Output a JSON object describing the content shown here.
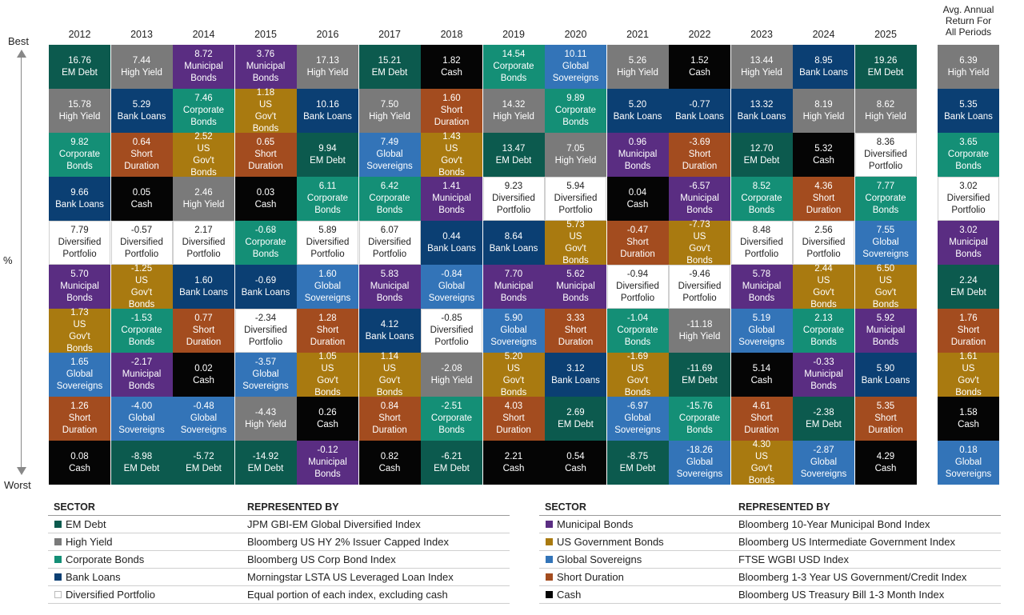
{
  "chart_data": {
    "type": "table",
    "years": [
      "2012",
      "2013",
      "2014",
      "2015",
      "2016",
      "2017",
      "2018",
      "2019",
      "2020",
      "2021",
      "2022",
      "2023",
      "2024",
      "2025"
    ],
    "avg_header": [
      "Avg. Annual",
      "Return For",
      "All Periods"
    ],
    "label_best": "Best",
    "label_worst": "Worst",
    "label_pct": "%",
    "colors": {
      "emd": "#0c5a4e",
      "hy": "#7a7a7a",
      "corp": "#148f76",
      "loans": "#0b3f73",
      "div": "#ffffff",
      "muni": "#5a2d82",
      "ust": "#a97a10",
      "glob": "#3374b8",
      "short": "#a34c1f",
      "cash": "#050505"
    },
    "columns": [
      [
        [
          "16.76",
          "EM Debt",
          "emd"
        ],
        [
          "15.78",
          "High Yield",
          "hy"
        ],
        [
          "9.82",
          "Corporate Bonds",
          "corp"
        ],
        [
          "9.66",
          "Bank Loans",
          "loans"
        ],
        [
          "7.79",
          "Diversified Portfolio",
          "div"
        ],
        [
          "5.70",
          "Municipal Bonds",
          "muni"
        ],
        [
          "1.73",
          "US Gov't Bonds",
          "ust"
        ],
        [
          "1.65",
          "Global Sovereigns",
          "glob"
        ],
        [
          "1.26",
          "Short Duration",
          "short"
        ],
        [
          "0.08",
          "Cash",
          "cash"
        ]
      ],
      [
        [
          "7.44",
          "High Yield",
          "hy"
        ],
        [
          "5.29",
          "Bank Loans",
          "loans"
        ],
        [
          "0.64",
          "Short Duration",
          "short"
        ],
        [
          "0.05",
          "Cash",
          "cash"
        ],
        [
          "-0.57",
          "Diversified Portfolio",
          "div"
        ],
        [
          "-1.25",
          "US Gov't Bonds",
          "ust"
        ],
        [
          "-1.53",
          "Corporate Bonds",
          "corp"
        ],
        [
          "-2.17",
          "Municipal Bonds",
          "muni"
        ],
        [
          "-4.00",
          "Global Sovereigns",
          "glob"
        ],
        [
          "-8.98",
          "EM Debt",
          "emd"
        ]
      ],
      [
        [
          "8.72",
          "Municipal Bonds",
          "muni"
        ],
        [
          "7.46",
          "Corporate Bonds",
          "corp"
        ],
        [
          "2.52",
          "US Gov't Bonds",
          "ust"
        ],
        [
          "2.46",
          "High Yield",
          "hy"
        ],
        [
          "2.17",
          "Diversified Portfolio",
          "div"
        ],
        [
          "1.60",
          "Bank Loans",
          "loans"
        ],
        [
          "0.77",
          "Short Duration",
          "short"
        ],
        [
          "0.02",
          "Cash",
          "cash"
        ],
        [
          "-0.48",
          "Global Sovereigns",
          "glob"
        ],
        [
          "-5.72",
          "EM Debt",
          "emd"
        ]
      ],
      [
        [
          "3.76",
          "Municipal Bonds",
          "muni"
        ],
        [
          "1.18",
          "US Gov't Bonds",
          "ust"
        ],
        [
          "0.65",
          "Short Duration",
          "short"
        ],
        [
          "0.03",
          "Cash",
          "cash"
        ],
        [
          "-0.68",
          "Corporate Bonds",
          "corp"
        ],
        [
          "-0.69",
          "Bank Loans",
          "loans"
        ],
        [
          "-2.34",
          "Diversified Portfolio",
          "div"
        ],
        [
          "-3.57",
          "Global Sovereigns",
          "glob"
        ],
        [
          "-4.43",
          "High Yield",
          "hy"
        ],
        [
          "-14.92",
          "EM Debt",
          "emd"
        ]
      ],
      [
        [
          "17.13",
          "High Yield",
          "hy"
        ],
        [
          "10.16",
          "Bank Loans",
          "loans"
        ],
        [
          "9.94",
          "EM Debt",
          "emd"
        ],
        [
          "6.11",
          "Corporate Bonds",
          "corp"
        ],
        [
          "5.89",
          "Diversified Portfolio",
          "div"
        ],
        [
          "1.60",
          "Global Sovereigns",
          "glob"
        ],
        [
          "1.28",
          "Short Duration",
          "short"
        ],
        [
          "1.05",
          "US Gov't Bonds",
          "ust"
        ],
        [
          "0.26",
          "Cash",
          "cash"
        ],
        [
          "-0.12",
          "Municipal Bonds",
          "muni"
        ]
      ],
      [
        [
          "15.21",
          "EM Debt",
          "emd"
        ],
        [
          "7.50",
          "High Yield",
          "hy"
        ],
        [
          "7.49",
          "Global Sovereigns",
          "glob"
        ],
        [
          "6.42",
          "Corporate Bonds",
          "corp"
        ],
        [
          "6.07",
          "Diversified Portfolio",
          "div"
        ],
        [
          "5.83",
          "Municipal Bonds",
          "muni"
        ],
        [
          "4.12",
          "Bank Loans",
          "loans"
        ],
        [
          "1.14",
          "US Gov't Bonds",
          "ust"
        ],
        [
          "0.84",
          "Short Duration",
          "short"
        ],
        [
          "0.82",
          "Cash",
          "cash"
        ]
      ],
      [
        [
          "1.82",
          "Cash",
          "cash"
        ],
        [
          "1.60",
          "Short Duration",
          "short"
        ],
        [
          "1.43",
          "US Gov't Bonds",
          "ust"
        ],
        [
          "1.41",
          "Municipal Bonds",
          "muni"
        ],
        [
          "0.44",
          "Bank Loans",
          "loans"
        ],
        [
          "-0.84",
          "Global Sovereigns",
          "glob"
        ],
        [
          "-0.85",
          "Diversified Portfolio",
          "div"
        ],
        [
          "-2.08",
          "High Yield",
          "hy"
        ],
        [
          "-2.51",
          "Corporate Bonds",
          "corp"
        ],
        [
          "-6.21",
          "EM Debt",
          "emd"
        ]
      ],
      [
        [
          "14.54",
          "Corporate Bonds",
          "corp"
        ],
        [
          "14.32",
          "High Yield",
          "hy"
        ],
        [
          "13.47",
          "EM Debt",
          "emd"
        ],
        [
          "9.23",
          "Diversified Portfolio",
          "div"
        ],
        [
          "8.64",
          "Bank Loans",
          "loans"
        ],
        [
          "7.70",
          "Municipal Bonds",
          "muni"
        ],
        [
          "5.90",
          "Global Sovereigns",
          "glob"
        ],
        [
          "5.20",
          "US Gov't Bonds",
          "ust"
        ],
        [
          "4.03",
          "Short Duration",
          "short"
        ],
        [
          "2.21",
          "Cash",
          "cash"
        ]
      ],
      [
        [
          "10.11",
          "Global Sovereigns",
          "glob"
        ],
        [
          "9.89",
          "Corporate Bonds",
          "corp"
        ],
        [
          "7.05",
          "High Yield",
          "hy"
        ],
        [
          "5.94",
          "Diversified Portfolio",
          "div"
        ],
        [
          "5.73",
          "US Gov't Bonds",
          "ust"
        ],
        [
          "5.62",
          "Municipal Bonds",
          "muni"
        ],
        [
          "3.33",
          "Short Duration",
          "short"
        ],
        [
          "3.12",
          "Bank Loans",
          "loans"
        ],
        [
          "2.69",
          "EM Debt",
          "emd"
        ],
        [
          "0.54",
          "Cash",
          "cash"
        ]
      ],
      [
        [
          "5.26",
          "High Yield",
          "hy"
        ],
        [
          "5.20",
          "Bank Loans",
          "loans"
        ],
        [
          "0.96",
          "Municipal Bonds",
          "muni"
        ],
        [
          "0.04",
          "Cash",
          "cash"
        ],
        [
          "-0.47",
          "Short Duration",
          "short"
        ],
        [
          "-0.94",
          "Diversified Portfolio",
          "div"
        ],
        [
          "-1.04",
          "Corporate Bonds",
          "corp"
        ],
        [
          "-1.69",
          "US Gov't Bonds",
          "ust"
        ],
        [
          "-6.97",
          "Global Sovereigns",
          "glob"
        ],
        [
          "-8.75",
          "EM Debt",
          "emd"
        ]
      ],
      [
        [
          "1.52",
          "Cash",
          "cash"
        ],
        [
          "-0.77",
          "Bank Loans",
          "loans"
        ],
        [
          "-3.69",
          "Short Duration",
          "short"
        ],
        [
          "-6.57",
          "Municipal Bonds",
          "muni"
        ],
        [
          "-7.73",
          "US Gov't Bonds",
          "ust"
        ],
        [
          "-9.46",
          "Diversified Portfolio",
          "div"
        ],
        [
          "-11.18",
          "High Yield",
          "hy"
        ],
        [
          "-11.69",
          "EM Debt",
          "emd"
        ],
        [
          "-15.76",
          "Corporate Bonds",
          "corp"
        ],
        [
          "-18.26",
          "Global Sovereigns",
          "glob"
        ]
      ],
      [
        [
          "13.44",
          "High Yield",
          "hy"
        ],
        [
          "13.32",
          "Bank Loans",
          "loans"
        ],
        [
          "12.70",
          "EM Debt",
          "emd"
        ],
        [
          "8.52",
          "Corporate Bonds",
          "corp"
        ],
        [
          "8.48",
          "Diversified Portfolio",
          "div"
        ],
        [
          "5.78",
          "Municipal Bonds",
          "muni"
        ],
        [
          "5.19",
          "Global Sovereigns",
          "glob"
        ],
        [
          "5.14",
          "Cash",
          "cash"
        ],
        [
          "4.61",
          "Short Duration",
          "short"
        ],
        [
          "4.30",
          "US Gov't Bonds",
          "ust"
        ]
      ],
      [
        [
          "8.95",
          "Bank Loans",
          "loans"
        ],
        [
          "8.19",
          "High Yield",
          "hy"
        ],
        [
          "5.32",
          "Cash",
          "cash"
        ],
        [
          "4.36",
          "Short Duration",
          "short"
        ],
        [
          "2.56",
          "Diversified Portfolio",
          "div"
        ],
        [
          "2.44",
          "US Gov't Bonds",
          "ust"
        ],
        [
          "2.13",
          "Corporate Bonds",
          "corp"
        ],
        [
          "-0.33",
          "Municipal Bonds",
          "muni"
        ],
        [
          "-2.38",
          "EM Debt",
          "emd"
        ],
        [
          "-2.87",
          "Global Sovereigns",
          "glob"
        ]
      ],
      [
        [
          "19.26",
          "EM Debt",
          "emd"
        ],
        [
          "8.62",
          "High Yield",
          "hy"
        ],
        [
          "8.36",
          "Diversified Portfolio",
          "div"
        ],
        [
          "7.77",
          "Corporate Bonds",
          "corp"
        ],
        [
          "7.55",
          "Global Sovereigns",
          "glob"
        ],
        [
          "6.50",
          "US Gov't Bonds",
          "ust"
        ],
        [
          "5.92",
          "Municipal Bonds",
          "muni"
        ],
        [
          "5.90",
          "Bank Loans",
          "loans"
        ],
        [
          "5.35",
          "Short Duration",
          "short"
        ],
        [
          "4.29",
          "Cash",
          "cash"
        ]
      ]
    ],
    "avg_column": [
      [
        "6.39",
        "High Yield",
        "hy"
      ],
      [
        "5.35",
        "Bank Loans",
        "loans"
      ],
      [
        "3.65",
        "Corporate Bonds",
        "corp"
      ],
      [
        "3.02",
        "Diversified Portfolio",
        "div"
      ],
      [
        "3.02",
        "Municipal Bonds",
        "muni"
      ],
      [
        "2.24",
        "EM Debt",
        "emd"
      ],
      [
        "1.76",
        "Short Duration",
        "short"
      ],
      [
        "1.61",
        "US Gov't Bonds",
        "ust"
      ],
      [
        "1.58",
        "Cash",
        "cash"
      ],
      [
        "0.18",
        "Global Sovereigns",
        "glob"
      ]
    ]
  },
  "legend": {
    "sector_header": "SECTOR",
    "index_header": "REPRESENTED BY",
    "left": [
      {
        "name": "EM Debt",
        "index": "JPM GBI-EM Global Diversified Index",
        "key": "emd"
      },
      {
        "name": "High Yield",
        "index": "Bloomberg US HY 2% Issuer Capped Index",
        "key": "hy"
      },
      {
        "name": "Corporate Bonds",
        "index": "Bloomberg US Corp Bond Index",
        "key": "corp"
      },
      {
        "name": "Bank Loans",
        "index": "Morningstar LSTA US Leveraged Loan Index",
        "key": "loans"
      },
      {
        "name": "Diversified Portfolio",
        "index": "Equal portion of each index, excluding cash",
        "key": "div"
      }
    ],
    "right": [
      {
        "name": "Municipal Bonds",
        "index": "Bloomberg 10-Year Municipal Bond Index",
        "key": "muni"
      },
      {
        "name": "US Government Bonds",
        "index": "Bloomberg US Intermediate Government Index",
        "key": "ust"
      },
      {
        "name": "Global Sovereigns",
        "index": "FTSE WGBI USD Index",
        "key": "glob"
      },
      {
        "name": "Short Duration",
        "index": "Bloomberg 1-3 Year US Government/Credit Index",
        "key": "short"
      },
      {
        "name": "Cash",
        "index": "Bloomberg US Treasury Bill 1-3 Month Index",
        "key": "cash"
      }
    ]
  }
}
